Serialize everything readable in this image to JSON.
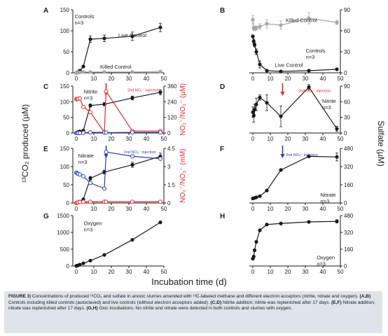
{
  "figure": {
    "x_axis_label": "Incubation time (d)",
    "left_axis_label": "¹³CO₂ produced (µM)",
    "right_axis_label": "Sulfate (µM)",
    "x_ticks": [
      0,
      10,
      20,
      30,
      40,
      50
    ],
    "caption_lead": "FIGURE 3",
    "caption_text": "| Concentrations of produced ¹³CO₂ and sulfate in anoxic slurries amended with ¹³C-labeled methane and different electron acceptors (nitrite, nitrate and oxygen). ",
    "caption_ab": "(A,B)",
    "caption_ab_text": " Controls including killed controls (autoclaved) and live controls (without electron acceptors added). ",
    "caption_cd": "(C,D)",
    "caption_cd_text": " Nitrite addition; nitrite was replenished after 17 days. ",
    "caption_ef": "(E,F)",
    "caption_ef_text": " Nitrate addition; nitrate was replenished after 17 days. ",
    "caption_gh": "(G,H)",
    "caption_gh_text": " Oxic incubations. No nitrite and nitrate were detected in both controls and slurries with oxygen."
  },
  "colors": {
    "black": "#1a1a1a",
    "gray": "#a6a6a6",
    "red": "#e8262b",
    "blue": "#2a3fa5"
  },
  "chart_data": [
    {
      "id": "A",
      "type": "line",
      "ylim": [
        0,
        150
      ],
      "yticks": [
        0,
        50,
        100,
        150
      ],
      "labels": [
        "Controls",
        "n=3"
      ],
      "annotations": [
        "Live Control",
        "Killed Control"
      ],
      "series": [
        {
          "name": "Live Control",
          "color": "#1a1a1a",
          "marker": "filled",
          "x": [
            0,
            0.5,
            1,
            2,
            4,
            8,
            16,
            32,
            48
          ],
          "y": [
            0,
            1,
            2,
            5,
            15,
            80,
            82,
            87,
            108
          ],
          "err": [
            0,
            0,
            0,
            0,
            2,
            8,
            8,
            10,
            10
          ]
        },
        {
          "name": "Killed Control",
          "color": "#a6a6a6",
          "marker": "filled",
          "x": [
            0,
            0.5,
            1,
            2,
            4,
            8,
            16,
            32,
            48
          ],
          "y": [
            0,
            0,
            1,
            1,
            2,
            2,
            2,
            2,
            3
          ],
          "err": []
        }
      ]
    },
    {
      "id": "B",
      "type": "line",
      "ylim": [
        0,
        90
      ],
      "yticks": [
        0,
        30,
        60,
        90
      ],
      "labels": [
        "Controls",
        "n=3"
      ],
      "annotations": [
        "Killed Control",
        "Live Control"
      ],
      "series": [
        {
          "name": "Killed Control",
          "color": "#a6a6a6",
          "marker": "filled",
          "x": [
            0,
            0.5,
            1,
            2,
            4,
            8,
            16,
            32,
            48
          ],
          "y": [
            76,
            64,
            63,
            64,
            66,
            70,
            68,
            78,
            72
          ],
          "err": [
            6,
            3,
            3,
            3,
            4,
            6,
            6,
            8,
            3
          ]
        },
        {
          "name": "Live Control",
          "color": "#1a1a1a",
          "marker": "filled",
          "x": [
            0,
            0.5,
            1,
            2,
            4,
            8,
            16,
            32,
            48
          ],
          "y": [
            52,
            45,
            40,
            30,
            12,
            3,
            2,
            3,
            5
          ],
          "err": [
            2,
            3,
            3,
            4,
            5,
            1,
            1,
            1,
            1
          ]
        }
      ]
    },
    {
      "id": "C",
      "type": "line",
      "ylim": [
        0,
        150
      ],
      "yticks": [
        0,
        50,
        100,
        150
      ],
      "right_ylim": [
        0,
        360
      ],
      "right_yticks": [
        0,
        120,
        240,
        360
      ],
      "right_axis_label": "NO₂⁻/NO₃⁻ (µM)",
      "labels": [
        "Nitrite",
        "n=3"
      ],
      "annotations": [
        "2nd NO₂⁻ injection"
      ],
      "injection_day": 17,
      "injection_color": "#e8262b",
      "series": [
        {
          "name": "¹³CO₂",
          "axis": "left",
          "color": "#1a1a1a",
          "marker": "filled",
          "x": [
            0,
            0.5,
            1,
            2,
            4,
            8,
            16,
            32,
            48
          ],
          "y": [
            0,
            1,
            3,
            5,
            8,
            88,
            92,
            112,
            130
          ],
          "err": [
            0,
            0,
            0,
            0,
            1,
            5,
            5,
            6,
            8
          ]
        },
        {
          "name": "NO₂⁻",
          "axis": "right",
          "color": "#e8262b",
          "marker": "open",
          "x": [
            0,
            0.5,
            1,
            2,
            4,
            8,
            16,
            17,
            32,
            48
          ],
          "y": [
            260,
            262,
            263,
            265,
            200,
            160,
            5,
            320,
            15,
            15
          ],
          "err": []
        },
        {
          "name": "NO₃⁻",
          "axis": "right",
          "color": "#2a3fa5",
          "marker": "open",
          "x": [
            0,
            0.5,
            1,
            2,
            4,
            8,
            16,
            17,
            32,
            48
          ],
          "y": [
            0,
            0,
            0,
            0,
            2,
            5,
            5,
            3,
            5,
            5
          ],
          "err": []
        }
      ]
    },
    {
      "id": "D",
      "type": "line",
      "ylim": [
        0,
        90
      ],
      "yticks": [
        0,
        30,
        60,
        90
      ],
      "labels": [
        "Nitrite",
        "n=3"
      ],
      "annotations": [
        "2nd NO₂⁻ injection"
      ],
      "injection_day": 17,
      "injection_color": "#e8262b",
      "series": [
        {
          "name": "Sulfate",
          "color": "#1a1a1a",
          "marker": "filled",
          "x": [
            0,
            0.5,
            1,
            2,
            4,
            8,
            16,
            32,
            48
          ],
          "y": [
            40,
            33,
            45,
            55,
            68,
            58,
            32,
            88,
            8
          ],
          "err": [
            10,
            12,
            10,
            12,
            5,
            15,
            20,
            5,
            5
          ]
        }
      ]
    },
    {
      "id": "E",
      "type": "line",
      "ylim": [
        0,
        150
      ],
      "yticks": [
        0,
        50,
        100,
        150
      ],
      "right_ylim": [
        0,
        4.5
      ],
      "right_yticks": [
        0,
        1.5,
        3.0,
        4.5
      ],
      "right_axis_label": "NO₂⁻/NO₃⁻ (mM)",
      "labels": [
        "Nitrate",
        "n=3"
      ],
      "annotations": [
        "2nd NO₃⁻ injection"
      ],
      "injection_day": 17,
      "injection_color": "#2a3fa5",
      "series": [
        {
          "name": "¹³CO₂",
          "axis": "left",
          "color": "#1a1a1a",
          "marker": "filled",
          "x": [
            0,
            0.5,
            1,
            2,
            4,
            8,
            16,
            32,
            48
          ],
          "y": [
            0,
            1,
            2,
            4,
            10,
            68,
            85,
            105,
            128
          ],
          "err": [
            0,
            0,
            0,
            0,
            1,
            5,
            5,
            7,
            9
          ]
        },
        {
          "name": "NO₃⁻",
          "axis": "right",
          "color": "#2a3fa5",
          "marker": "open",
          "x": [
            0,
            0.5,
            1,
            2,
            4,
            8,
            16,
            17,
            32,
            48
          ],
          "y": [
            2.5,
            2.45,
            2.4,
            2.35,
            2.2,
            1.65,
            1.2,
            4.2,
            3.85,
            3.65
          ],
          "err": []
        },
        {
          "name": "NO₂⁻",
          "axis": "right",
          "color": "#e8262b",
          "marker": "open",
          "x": [
            0,
            0.5,
            1,
            2,
            4,
            8,
            16,
            17,
            32,
            48
          ],
          "y": [
            0,
            0.02,
            0.05,
            0.08,
            0.1,
            0.1,
            0.1,
            0.1,
            0.1,
            0.1
          ],
          "err": []
        }
      ]
    },
    {
      "id": "F",
      "type": "line",
      "ylim": [
        0,
        480
      ],
      "yticks": [
        0,
        160,
        320,
        480
      ],
      "labels": [
        "Nitrate",
        "n=3"
      ],
      "annotations": [
        "2nd NO₃⁻ injection"
      ],
      "injection_day": 17,
      "injection_color": "#2a3fa5",
      "series": [
        {
          "name": "Sulfate",
          "color": "#1a1a1a",
          "marker": "filled",
          "x": [
            0,
            1,
            2,
            4,
            8,
            16,
            32,
            48
          ],
          "y": [
            40,
            45,
            50,
            60,
            110,
            290,
            410,
            405
          ],
          "err": [
            0,
            0,
            0,
            0,
            10,
            10,
            10,
            35
          ]
        }
      ]
    },
    {
      "id": "G",
      "type": "line",
      "ylim": [
        0,
        1500
      ],
      "yticks": [
        0,
        500,
        1000,
        1500
      ],
      "labels": [
        "Oxygen",
        "n=3"
      ],
      "annotations": [],
      "series": [
        {
          "name": "¹³CO₂",
          "color": "#1a1a1a",
          "marker": "filled",
          "x": [
            0,
            0.5,
            1,
            2,
            4,
            8,
            16,
            32,
            48
          ],
          "y": [
            5,
            10,
            20,
            40,
            80,
            160,
            330,
            780,
            1300
          ],
          "err": []
        }
      ]
    },
    {
      "id": "H",
      "type": "line",
      "ylim": [
        0,
        480
      ],
      "yticks": [
        0,
        160,
        320,
        480
      ],
      "labels": [
        "Oxygen",
        "n=3"
      ],
      "annotations": [],
      "series": [
        {
          "name": "Sulfate",
          "color": "#1a1a1a",
          "marker": "filled",
          "x": [
            0,
            0.5,
            1,
            2,
            4,
            8,
            16,
            32,
            48
          ],
          "y": [
            70,
            90,
            150,
            230,
            340,
            395,
            405,
            420,
            425
          ],
          "err": [
            0,
            0,
            0,
            0,
            10,
            5,
            5,
            5,
            15
          ]
        }
      ]
    }
  ]
}
